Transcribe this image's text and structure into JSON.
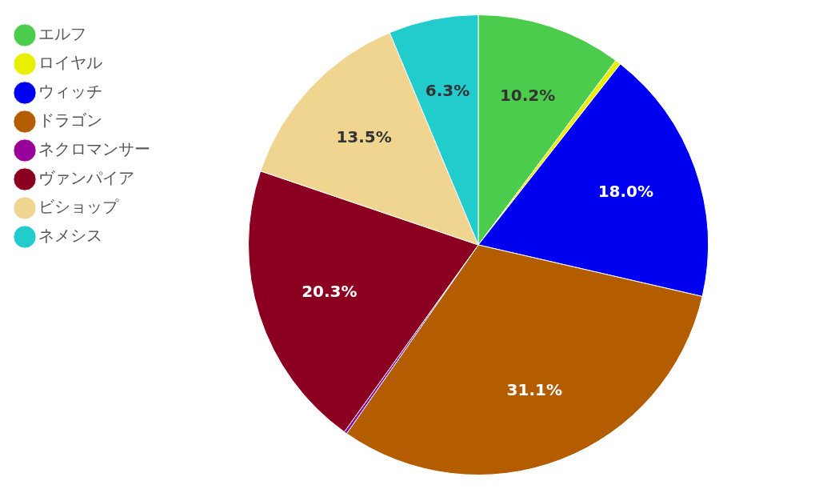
{
  "chart_data": {
    "type": "pie",
    "categories": [
      "エルフ",
      "ロイヤル",
      "ウィッチ",
      "ドラゴン",
      "ネクロマンサー",
      "ヴァンパイア",
      "ビショップ",
      "ネメシス"
    ],
    "values": [
      10.2,
      0.4,
      18.0,
      31.1,
      0.2,
      20.3,
      13.5,
      6.3
    ],
    "value_labels": [
      "10.2%",
      null,
      "18.0%",
      "31.1%",
      null,
      "20.3%",
      "13.5%",
      "6.3%"
    ],
    "colors": [
      "#4ccc4c",
      "#e8f000",
      "#0000f0",
      "#b35c00",
      "#990099",
      "#8b0020",
      "#f0d590",
      "#22cccc"
    ],
    "legend": "top left"
  }
}
